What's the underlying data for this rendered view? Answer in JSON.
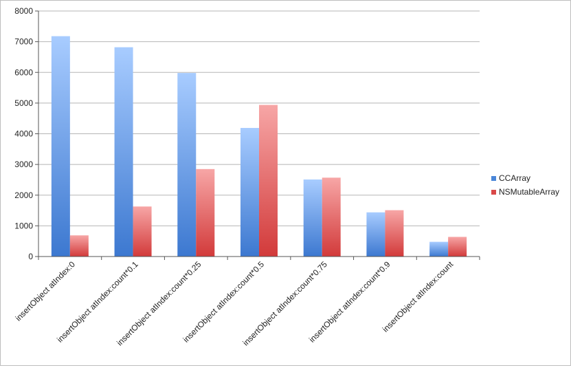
{
  "chart_data": {
    "type": "bar",
    "title": "",
    "xlabel": "",
    "ylabel": "",
    "ylim": [
      0,
      8000
    ],
    "yticks": [
      0,
      1000,
      2000,
      3000,
      4000,
      5000,
      6000,
      7000,
      8000
    ],
    "grid": true,
    "legend_position": "right",
    "categories": [
      "insertObject atIndex:0",
      "insertObject atIndex:count*0.1",
      "insertObject atIndex:count*0.25",
      "insertObject atIndex:count*0.5",
      "insertObject atIndex:count*0.75",
      "insertObject atIndex:count*0.9",
      "insertObject atIndex:count"
    ],
    "series": [
      {
        "name": "CCArray",
        "color": "#4a86d8",
        "values": [
          7180,
          6820,
          5980,
          4190,
          2510,
          1440,
          480
        ]
      },
      {
        "name": "NSMutableArray",
        "color": "#d94848",
        "values": [
          690,
          1630,
          2850,
          4940,
          2570,
          1510,
          640
        ]
      }
    ]
  }
}
